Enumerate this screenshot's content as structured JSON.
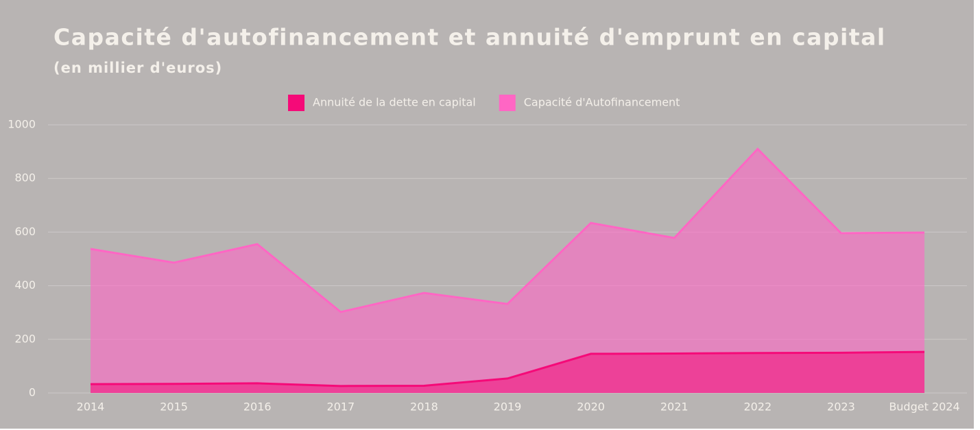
{
  "chart_data": {
    "type": "area",
    "title": "Capacité d'autofinancement et annuité d'emprunt en capital",
    "subtitle": "(en millier d'euros)",
    "categories": [
      "2014",
      "2015",
      "2016",
      "2017",
      "2018",
      "2019",
      "2020",
      "2021",
      "2022",
      "2023",
      "Budget 2024"
    ],
    "series": [
      {
        "name": "Annuité de la dette en capital",
        "color": "#f50a78",
        "values": [
          33,
          34,
          36,
          26,
          27,
          54,
          146,
          147,
          149,
          150,
          153
        ]
      },
      {
        "name": "Capacité d'Autofinancement",
        "color": "#ff66c4",
        "values": [
          537,
          486,
          555,
          302,
          373,
          332,
          634,
          578,
          910,
          596,
          598
        ]
      }
    ],
    "ylim": [
      0,
      1000
    ],
    "yticks": [
      0,
      200,
      400,
      600,
      800,
      1000
    ],
    "grid": true,
    "legend": "top"
  }
}
